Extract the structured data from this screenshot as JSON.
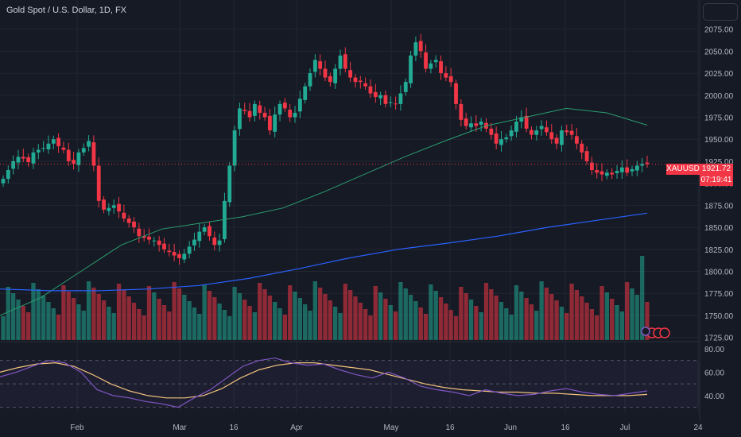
{
  "header": {
    "title": "Gold Spot / U.S. Dollar, 1D, FX"
  },
  "price_tag": {
    "symbol": "XAUUSD",
    "price": "1921.72",
    "countdown": "07:19:41",
    "color": "#f23645"
  },
  "colors": {
    "up": "#22ab94",
    "down": "#f23645",
    "ma_short": "#2a9d6f",
    "ma_long": "#2962ff",
    "rsi": "#7e57c2",
    "rsi_ma": "#f0c27b",
    "grid": "#232632",
    "text": "#b2b5be"
  },
  "chart_data": [
    {
      "type": "candlestick",
      "title": "Gold Spot / U.S. Dollar, 1D, FX",
      "y_ticks": [
        "2075.00",
        "2050.00",
        "2025.00",
        "2000.00",
        "1975.00",
        "1950.00",
        "1925.00",
        "1900.00",
        "1875.00",
        "1850.00",
        "1825.00",
        "1800.00",
        "1775.00",
        "1750.00",
        "1725.00"
      ],
      "ylim": [
        1722,
        2090
      ],
      "x_ticks": [
        "Feb",
        "Mar",
        "16",
        "Apr",
        "May",
        "16",
        "Jun",
        "16",
        "Jul",
        "24"
      ],
      "last_price": 1921.72,
      "close_series_approx": [
        1905,
        1915,
        1925,
        1930,
        1928,
        1924,
        1935,
        1938,
        1940,
        1945,
        1950,
        1942,
        1938,
        1925,
        1922,
        1935,
        1940,
        1948,
        1920,
        1880,
        1870,
        1872,
        1875,
        1868,
        1860,
        1855,
        1850,
        1840,
        1838,
        1836,
        1835,
        1830,
        1825,
        1822,
        1818,
        1815,
        1820,
        1828,
        1836,
        1845,
        1850,
        1840,
        1830,
        1835,
        1880,
        1920,
        1960,
        1985,
        1982,
        1975,
        1990,
        1980,
        1975,
        1960,
        1978,
        1990,
        1985,
        1975,
        1980,
        1996,
        2010,
        2025,
        2040,
        2030,
        2020,
        2015,
        2030,
        2045,
        2030,
        2020,
        2015,
        2015,
        2010,
        2002,
        1998,
        2000,
        1990,
        1992,
        1990,
        2002,
        2015,
        2045,
        2060,
        2050,
        2030,
        2036,
        2040,
        2025,
        2020,
        2015,
        1990,
        1972,
        1965,
        1968,
        1965,
        1970,
        1962,
        1955,
        1945,
        1950,
        1952,
        1960,
        1970,
        1975,
        1962,
        1955,
        1960,
        1965,
        1958,
        1950,
        1945,
        1960,
        1958,
        1955,
        1945,
        1935,
        1925,
        1915,
        1912,
        1910,
        1912,
        1910,
        1914,
        1918,
        1912,
        1916,
        1920,
        1922,
        1921.72
      ],
      "volume_levels_approx": "relative volume bars, peak near last session",
      "series": [
        {
          "name": "",
          "kind": "moving average (short)",
          "y_approx": [
            1750,
            1770,
            1800,
            1830,
            1848,
            1855,
            1862,
            1872,
            1890,
            1910,
            1930,
            1948,
            1965,
            1975,
            1985,
            1980,
            1966
          ]
        },
        {
          "name": "",
          "kind": "moving average (long)",
          "y_approx": [
            1780,
            1778,
            1778,
            1780,
            1784,
            1792,
            1803,
            1815,
            1825,
            1832,
            1840,
            1850,
            1858,
            1866
          ]
        }
      ]
    },
    {
      "type": "line",
      "title": "",
      "y_ticks": [
        "80.00",
        "60.00",
        "40.00"
      ],
      "ylim": [
        25,
        82
      ],
      "series": [
        {
          "name": "",
          "kind": "oscillator",
          "y_approx": [
            56,
            60,
            65,
            70,
            68,
            60,
            45,
            40,
            38,
            35,
            33,
            30,
            38,
            45,
            55,
            65,
            70,
            72,
            68,
            66,
            67,
            62,
            58,
            55,
            60,
            55,
            48,
            45,
            43,
            40,
            45,
            42,
            40,
            41,
            44,
            46,
            43,
            41,
            40,
            42,
            44
          ]
        },
        {
          "name": "",
          "kind": "oscillator moving average",
          "y_approx": [
            60,
            64,
            67,
            68,
            65,
            58,
            50,
            44,
            40,
            38,
            38,
            40,
            46,
            55,
            62,
            66,
            68,
            68,
            66,
            64,
            62,
            58,
            54,
            50,
            47,
            45,
            44,
            43,
            43,
            42,
            42,
            41,
            40,
            40,
            40,
            41
          ]
        }
      ]
    }
  ]
}
